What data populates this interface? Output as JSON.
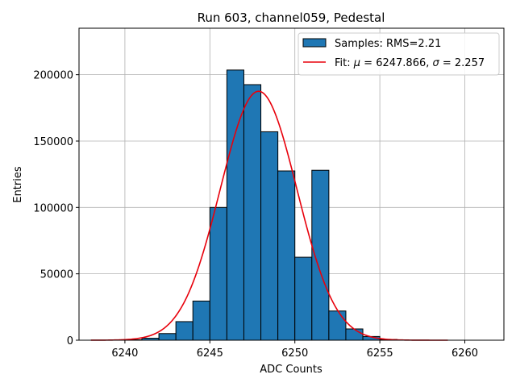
{
  "chart_data": {
    "type": "bar",
    "title": "Run 603, channel059, Pedestal",
    "xlabel": "ADC Counts",
    "ylabel": "Entries",
    "xlim": [
      6237.3,
      6262.3
    ],
    "ylim": [
      0,
      235000
    ],
    "xticks": [
      6240,
      6245,
      6250,
      6255,
      6260
    ],
    "yticks": [
      0,
      50000,
      100000,
      150000,
      200000
    ],
    "grid": true,
    "legend_position": "top-right",
    "bin_width": 1,
    "bins": [
      {
        "left": 6240,
        "value": 300
      },
      {
        "left": 6241,
        "value": 1500
      },
      {
        "left": 6242,
        "value": 5000
      },
      {
        "left": 6243,
        "value": 14000
      },
      {
        "left": 6244,
        "value": 29500
      },
      {
        "left": 6245,
        "value": 100000
      },
      {
        "left": 6246,
        "value": 203500
      },
      {
        "left": 6247,
        "value": 192500
      },
      {
        "left": 6248,
        "value": 157000
      },
      {
        "left": 6249,
        "value": 127500
      },
      {
        "left": 6250,
        "value": 62500
      },
      {
        "left": 6251,
        "value": 128000
      },
      {
        "left": 6252,
        "value": 22000
      },
      {
        "left": 6253,
        "value": 8500
      },
      {
        "left": 6254,
        "value": 2800
      },
      {
        "left": 6255,
        "value": 600
      }
    ],
    "fit": {
      "mu": 6247.866,
      "sigma": 2.257,
      "amplitude": 187500,
      "x_range": [
        6238,
        6259
      ]
    },
    "legend": {
      "hist_label": "Samples: RMS=2.21",
      "fit_label_prefix": "Fit: ",
      "fit_label_mu": "μ",
      "fit_label_mid": " = 6247.866, ",
      "fit_label_sigma": "σ",
      "fit_label_suffix": " = 2.257"
    },
    "colors": {
      "bar_fill": "#1f77b4",
      "bar_edge": "#000000",
      "fit_line": "#e8000b",
      "grid": "#b0b0b0"
    }
  }
}
